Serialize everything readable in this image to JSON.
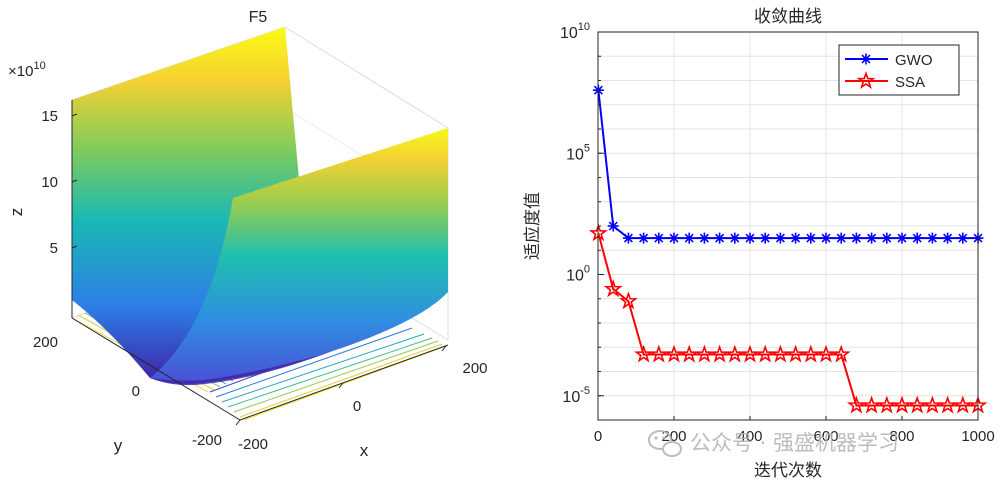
{
  "chart_data": [
    {
      "type": "surface",
      "title": "F5",
      "xlabel": "x",
      "ylabel": "y",
      "zlabel": "z",
      "z_exponent_label": "×10",
      "z_exponent_power": "10",
      "x_ticks": [
        "-200",
        "0",
        "200"
      ],
      "y_ticks": [
        "-200",
        "0",
        "200"
      ],
      "z_ticks": [
        "5",
        "10",
        "15"
      ],
      "colormap": [
        "#3e26a8",
        "#2e7de8",
        "#19b9b4",
        "#7fcb5c",
        "#f6d130",
        "#f9fb15"
      ]
    },
    {
      "type": "line",
      "title": "收敛曲线",
      "xlabel": "迭代次数",
      "ylabel": "适应度值",
      "yscale": "log",
      "xlim": [
        0,
        1000
      ],
      "ylim_log10": [
        -6,
        10
      ],
      "x_ticks": [
        "0",
        "200",
        "400",
        "600",
        "800",
        "1000"
      ],
      "y_ticks": [
        {
          "base": "10",
          "exp": "10",
          "log10": 10
        },
        {
          "base": "10",
          "exp": "5",
          "log10": 5
        },
        {
          "base": "10",
          "exp": "0",
          "log10": 0
        },
        {
          "base": "10",
          "exp": "-5",
          "log10": -5
        }
      ],
      "legend_position": "top-right",
      "series": [
        {
          "name": "GWO",
          "color": "#0000ff",
          "marker": "asterisk",
          "x": [
            1,
            40,
            80,
            120,
            160,
            200,
            240,
            280,
            320,
            360,
            400,
            440,
            480,
            520,
            560,
            600,
            640,
            680,
            720,
            760,
            800,
            840,
            880,
            920,
            960,
            1000
          ],
          "log10_y": [
            7.6,
            2.0,
            1.5,
            1.5,
            1.5,
            1.5,
            1.5,
            1.5,
            1.5,
            1.5,
            1.5,
            1.5,
            1.5,
            1.5,
            1.5,
            1.5,
            1.5,
            1.5,
            1.5,
            1.5,
            1.5,
            1.5,
            1.5,
            1.5,
            1.5,
            1.5
          ]
        },
        {
          "name": "SSA",
          "color": "#ff0000",
          "marker": "star",
          "x": [
            1,
            40,
            80,
            120,
            160,
            200,
            240,
            280,
            320,
            360,
            400,
            440,
            480,
            520,
            560,
            600,
            640,
            680,
            720,
            760,
            800,
            840,
            880,
            920,
            960,
            1000
          ],
          "log10_y": [
            1.7,
            -0.6,
            -1.1,
            -3.3,
            -3.3,
            -3.3,
            -3.3,
            -3.3,
            -3.3,
            -3.3,
            -3.3,
            -3.3,
            -3.3,
            -3.3,
            -3.3,
            -3.3,
            -3.3,
            -5.4,
            -5.4,
            -5.4,
            -5.4,
            -5.4,
            -5.4,
            -5.4,
            -5.4,
            -5.4
          ]
        }
      ]
    }
  ],
  "watermark": {
    "text": "公众号 · 强盛机器学习",
    "icon": "wechat-icon"
  }
}
